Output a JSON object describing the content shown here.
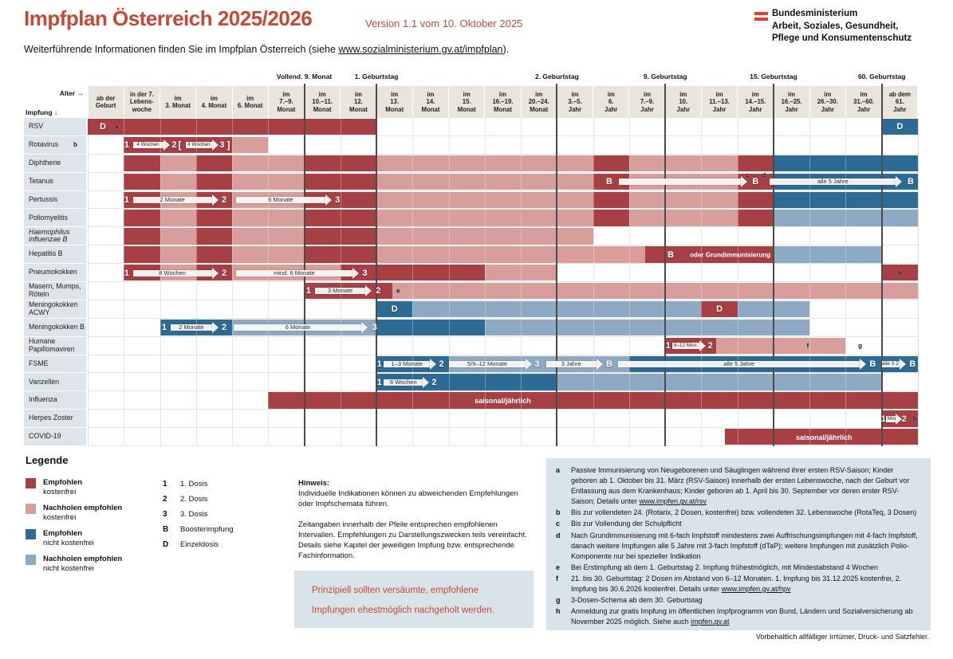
{
  "page": {
    "title": "Impfplan Österreich 2025/2026",
    "version": "Version 1.1 vom 10. Oktober 2025",
    "ministry_lines": [
      "Bundesministerium",
      "Arbeit, Soziales, Gesundheit,",
      "Pflege und Konsumentenschutz"
    ],
    "info_prefix": "Weiterführende Informationen finden Sie im Impfplan Österreich (siehe ",
    "info_link": "www.sozialministerium.gv.at/impfplan",
    "info_suffix": ").",
    "disclaimer": "Vorbehaltlich allfälliger Irrtümer, Druck- und Satzfehler."
  },
  "colors": {
    "dr": "#a64045",
    "pk": "#d79e9b",
    "db": "#2d6b94",
    "lb": "#8ea9c4",
    "accent": "#c54936",
    "flag_red": "#e93e2f",
    "header_bg": "#e9e5dc",
    "label_bg": "#dee5ea",
    "panel_bg": "#d9e3ea"
  },
  "chart_data": {
    "type": "table",
    "corner": {
      "age": "Alter →",
      "vaccine": "Impfung ↓"
    },
    "columns": [
      "ab der\nGeburt",
      "in der 7.\nLebens-\nwoche",
      "im\n3. Monat",
      "im\n4. Monat",
      "im\n6. Monat",
      "im\n7.–9.\nMonat",
      "im\n10.–11.\nMonat",
      "im\n12.\nMonat",
      "im\n13.\nMonat",
      "im\n14.\nMonat",
      "im\n15.\nMonat",
      "im\n16.–19.\nMonat",
      "im\n20.–24.\nMonat",
      "im\n3.–5.\nJahr",
      "im\n6.\nJahr",
      "im\n7.–9.\nJahr",
      "im\n10.\nJahr",
      "im\n11.–13.\nJahr",
      "im\n14.–15.\nJahr",
      "im\n16.–25.\nJahr",
      "im\n26.–30.\nJahr",
      "im\n31.–60.\nJahr",
      "ab dem\n61.\nJahr"
    ],
    "milestones": [
      {
        "label": "Vollend. 9. Monat",
        "u": 6
      },
      {
        "label": "1. Geburtstag",
        "u": 8
      },
      {
        "label": "2. Geburtstag",
        "u": 13
      },
      {
        "label": "9. Geburtstag",
        "u": 16
      },
      {
        "label": "15. Geburtstag",
        "u": 19
      },
      {
        "label": "60. Geburtstag",
        "u": 22
      }
    ],
    "rows": [
      {
        "label": "RSV",
        "spans": [
          [
            0,
            8,
            "dr"
          ],
          [
            22,
            23,
            "db"
          ]
        ],
        "arrows": [],
        "marks": [
          [
            "num",
            "D",
            0.42
          ],
          [
            "fn",
            "a",
            0.8
          ],
          [
            "num",
            "D",
            22.5
          ]
        ]
      },
      {
        "label": "Rotavirus",
        "sup": "b",
        "spans": [
          [
            1,
            4,
            "dr"
          ],
          [
            4,
            5,
            "pk"
          ]
        ],
        "arrows": [
          [
            "4 Wochen",
            1.25,
            2.2
          ],
          [
            "4 Wochen",
            2.72,
            3.55
          ]
        ],
        "marks": [
          [
            "num",
            "1",
            1.08
          ],
          [
            "num",
            "2",
            2.4
          ],
          [
            "br",
            "[",
            2.55
          ],
          [
            "num",
            "3",
            3.72
          ],
          [
            "br",
            "]",
            3.9
          ]
        ]
      },
      {
        "label": "Diphtherie",
        "spans": [
          [
            1,
            2,
            "dr"
          ],
          [
            2,
            3,
            "pk"
          ],
          [
            3,
            4,
            "dr"
          ],
          [
            4,
            6,
            "pk"
          ],
          [
            6,
            8,
            "dr"
          ],
          [
            8,
            14,
            "pk"
          ],
          [
            14,
            15,
            "dr"
          ],
          [
            15,
            18,
            "pk"
          ],
          [
            18,
            19,
            "dr"
          ],
          [
            19,
            23,
            "db"
          ]
        ],
        "arrows": [],
        "marks": []
      },
      {
        "label": "Tetanus",
        "spans": [
          [
            1,
            2,
            "dr"
          ],
          [
            2,
            3,
            "pk"
          ],
          [
            3,
            4,
            "dr"
          ],
          [
            4,
            6,
            "pk"
          ],
          [
            6,
            8,
            "dr"
          ],
          [
            8,
            14,
            "pk"
          ],
          [
            14,
            15,
            "dr"
          ],
          [
            15,
            18,
            "pk"
          ],
          [
            18,
            19,
            "dr"
          ],
          [
            19,
            23,
            "db"
          ]
        ],
        "arrows": [
          [
            "",
            14.72,
            18.2
          ],
          [
            "alle 5 Jahre",
            18.9,
            22.5
          ]
        ],
        "marks": [
          [
            "num",
            "B",
            14.45
          ],
          [
            "num",
            "B",
            18.5
          ],
          [
            "fn",
            "c",
            18.28,
            -8
          ],
          [
            "fn",
            "d",
            18.73,
            -8
          ],
          [
            "num",
            "B",
            22.8
          ]
        ]
      },
      {
        "label": "Pertussis",
        "spans": [
          [
            1,
            2,
            "dr"
          ],
          [
            2,
            3,
            "pk"
          ],
          [
            3,
            4,
            "dr"
          ],
          [
            4,
            6,
            "pk"
          ],
          [
            6,
            8,
            "dr"
          ],
          [
            8,
            14,
            "pk"
          ],
          [
            14,
            15,
            "dr"
          ],
          [
            15,
            18,
            "pk"
          ],
          [
            18,
            19,
            "dr"
          ],
          [
            19,
            23,
            "db"
          ]
        ],
        "arrows": [
          [
            "2 Monate",
            1.25,
            3.55
          ],
          [
            "6 Monate",
            4.1,
            6.7
          ]
        ],
        "marks": [
          [
            "num",
            "1",
            1.08
          ],
          [
            "num",
            "2",
            3.78
          ],
          [
            "num",
            "3",
            6.92
          ]
        ]
      },
      {
        "label": "Poliomyelitis",
        "spans": [
          [
            1,
            2,
            "dr"
          ],
          [
            2,
            3,
            "pk"
          ],
          [
            3,
            4,
            "dr"
          ],
          [
            4,
            6,
            "pk"
          ],
          [
            6,
            8,
            "dr"
          ],
          [
            8,
            14,
            "pk"
          ],
          [
            14,
            15,
            "dr"
          ],
          [
            15,
            18,
            "pk"
          ],
          [
            18,
            19,
            "dr"
          ],
          [
            19,
            23,
            "lb"
          ]
        ],
        "arrows": [],
        "marks": []
      },
      {
        "label": "Haemophilus\ninfluenzae B",
        "italic": true,
        "spans": [
          [
            1,
            2,
            "dr"
          ],
          [
            2,
            3,
            "pk"
          ],
          [
            3,
            4,
            "dr"
          ],
          [
            4,
            6,
            "pk"
          ],
          [
            6,
            8,
            "dr"
          ],
          [
            8,
            14,
            "pk"
          ]
        ],
        "arrows": [],
        "marks": []
      },
      {
        "label": "Hepatitis B",
        "spans": [
          [
            1,
            2,
            "dr"
          ],
          [
            2,
            3,
            "pk"
          ],
          [
            3,
            4,
            "dr"
          ],
          [
            4,
            6,
            "pk"
          ],
          [
            6,
            8,
            "dr"
          ],
          [
            8,
            15.45,
            "pk"
          ],
          [
            15.45,
            19,
            "dr"
          ],
          [
            19,
            22,
            "lb"
          ]
        ],
        "arrows": [],
        "marks": [
          [
            "num",
            "B",
            16.15
          ],
          [
            "wl",
            "oder Grundimmunisierung",
            17.8,
            0,
            8
          ]
        ]
      },
      {
        "label": "Pneumokokken",
        "spans": [
          [
            1,
            2,
            "dr"
          ],
          [
            2,
            3,
            "pk"
          ],
          [
            3,
            4,
            "dr"
          ],
          [
            4,
            7,
            "pk"
          ],
          [
            7,
            11,
            "dr"
          ],
          [
            11,
            13,
            "pk"
          ],
          [
            22,
            23,
            "dr"
          ]
        ],
        "arrows": [
          [
            "8 Wochen",
            1.25,
            3.55
          ],
          [
            "mind. 6 Monate",
            4.1,
            7.45
          ]
        ],
        "marks": [
          [
            "num",
            "1",
            1.08
          ],
          [
            "num",
            "2",
            3.78
          ],
          [
            "num",
            "3",
            7.68
          ],
          [
            "fn",
            "h",
            22.5
          ]
        ]
      },
      {
        "label": "Masern, Mumps,\nRöteln",
        "spans": [
          [
            6,
            8.45,
            "dr"
          ],
          [
            8.45,
            23,
            "pk"
          ]
        ],
        "arrows": [
          [
            "3 Monate",
            6.3,
            7.8
          ]
        ],
        "marks": [
          [
            "num",
            "1",
            6.12
          ],
          [
            "num",
            "2",
            8.05
          ],
          [
            "fn",
            "e",
            8.6
          ]
        ]
      },
      {
        "label": "Meningokokken\nACWY",
        "spans": [
          [
            8,
            9,
            "db"
          ],
          [
            9,
            17,
            "lb"
          ],
          [
            17,
            18,
            "dr"
          ],
          [
            18,
            20,
            "lb"
          ]
        ],
        "arrows": [],
        "marks": [
          [
            "num",
            "D",
            8.5
          ],
          [
            "num",
            "D",
            17.5
          ]
        ]
      },
      {
        "label": "Meningokokken B",
        "spans": [
          [
            2,
            4,
            "db"
          ],
          [
            4,
            8,
            "lb"
          ],
          [
            8,
            11,
            "db"
          ],
          [
            11,
            20,
            "lb"
          ]
        ],
        "arrows": [
          [
            "2 Monate",
            2.3,
            3.55
          ],
          [
            "6 Monate",
            4.05,
            7.7
          ]
        ],
        "marks": [
          [
            "num",
            "1",
            2.12
          ],
          [
            "num",
            "2",
            3.78
          ],
          [
            "num",
            "3",
            7.95
          ]
        ]
      },
      {
        "label": "Humane\nPapillomaviren",
        "spans": [
          [
            16,
            17.4,
            "dr"
          ],
          [
            17.4,
            21,
            "pk"
          ]
        ],
        "arrows": [
          [
            "6–12 Mon.",
            16.2,
            17.05
          ]
        ],
        "marks": [
          [
            "num",
            "1",
            16.08
          ],
          [
            "num",
            "2",
            17.25
          ],
          [
            "fn",
            "f",
            19.95
          ],
          [
            "fn",
            "g",
            21.4
          ]
        ]
      },
      {
        "label": "FSME",
        "spans": [
          [
            8,
            10,
            "db"
          ],
          [
            10,
            15,
            "lb"
          ],
          [
            15,
            23,
            "db"
          ]
        ],
        "arrows": [
          [
            "1–3 Monate",
            8.2,
            9.6
          ],
          [
            "5/9–12 Monate",
            10.0,
            12.25
          ],
          [
            "3 Jahre",
            12.7,
            14.2
          ],
          [
            "alle 5 Jahre",
            14.7,
            21.5
          ],
          [
            "alle 3 J.",
            22.0,
            22.6
          ]
        ],
        "marks": [
          [
            "num",
            "1",
            8.08
          ],
          [
            "num",
            "2",
            9.8
          ],
          [
            "num",
            "3",
            12.45
          ],
          [
            "num",
            "B",
            14.45
          ],
          [
            "num",
            "B",
            21.75
          ],
          [
            "num",
            "B",
            22.85
          ]
        ]
      },
      {
        "label": "Varizellen",
        "spans": [
          [
            8,
            13,
            "db"
          ],
          [
            13,
            22,
            "lb"
          ]
        ],
        "arrows": [
          [
            "6 Wochen",
            8.2,
            9.4
          ]
        ],
        "marks": [
          [
            "num",
            "1",
            8.08
          ],
          [
            "num",
            "2",
            9.6
          ]
        ]
      },
      {
        "label": "Influenza",
        "spans": [
          [
            5,
            23,
            "dr"
          ]
        ],
        "arrows": [],
        "marks": [
          [
            "wl",
            "saisonal/jährlich",
            11.5,
            0,
            9
          ]
        ]
      },
      {
        "label": "Herpes Zoster",
        "spans": [
          [
            22,
            23,
            "dr"
          ]
        ],
        "arrows": [
          [
            "2 Mon.",
            22.12,
            22.5
          ]
        ],
        "marks": [
          [
            "num",
            "1",
            22.05
          ],
          [
            "num",
            "2",
            22.62
          ],
          [
            "fn",
            "h",
            22.92
          ]
        ]
      },
      {
        "label": "COVID-19",
        "spans": [
          [
            17.65,
            23,
            "dr"
          ]
        ],
        "arrows": [],
        "marks": [
          [
            "wl",
            "saisonal/jährlich",
            20.4,
            0,
            9
          ]
        ]
      }
    ]
  },
  "legend": {
    "title": "Legende",
    "swatches": [
      {
        "color": "dr",
        "line1": "Empfohlen",
        "line2": "kostenfrei"
      },
      {
        "color": "pk",
        "line1": "Nachholen empfohlen",
        "line2": "kostenfrei"
      },
      {
        "color": "db",
        "line1": "Empfohlen",
        "line2": "nicht kostenfrei"
      },
      {
        "color": "lb",
        "line1": "Nachholen empfohlen",
        "line2": "nicht kostenfrei"
      }
    ],
    "symbols": [
      {
        "sym": "1",
        "text": "1. Dosis"
      },
      {
        "sym": "2",
        "text": "2. Dosis"
      },
      {
        "sym": "3",
        "text": "3. Dosis"
      },
      {
        "sym": "B",
        "text": "Boosterimpfung"
      },
      {
        "sym": "D",
        "text": "Einzeldosis"
      }
    ]
  },
  "hinweis": {
    "title": "Hinweis:",
    "p1": "Individuelle Indikationen können zu abweichenden Empfehlungen oder Impfschemata führen.",
    "p2": "Zeitangaben innerhalb der Pfeile entsprechen empfohlenen Intervallen. Empfehlungen zu Darstellungszwecken teils vereinfacht. Details siehe Kapitel der jeweiligen Impfung bzw. entsprechende Fachinformation."
  },
  "notice": "Prinzipiell sollten versäumte, empfohlene Impfungen ehestmöglich nachgeholt werden.",
  "footnotes": [
    {
      "k": "a",
      "segs": [
        {
          "t": "Passive Immunisierung von Neugeborenen und Säuglingen während ihrer ersten RSV-Saison; Kinder geboren ab 1. Oktober bis 31. März (RSV-Saison) innerhalb der ersten Lebenswoche, nach der Geburt vor Entlassung aus dem Krankenhaus; Kinder geboren ab 1. April bis 30. September vor deren erster RSV-Saison; Details unter "
        },
        {
          "t": "www.impfen.gv.at/rsv",
          "link": true
        }
      ]
    },
    {
      "k": "b",
      "segs": [
        {
          "t": "Bis zur vollendeten 24. (Rotarix, 2 Dosen, kostenfrei) bzw. vollendeten 32. Lebenswoche (RotaTeq, 3 Dosen)"
        }
      ]
    },
    {
      "k": "c",
      "segs": [
        {
          "t": "Bis zur Vollendung der Schulpflicht"
        }
      ]
    },
    {
      "k": "d",
      "segs": [
        {
          "t": "Nach Grundimmunisierung mit 6-fach Impfstoff mindestens zwei Auffrischungsimpfungen mit 4-fach Impfstoff, danach weitere Impfungen alle 5 Jahre mit 3-fach Impfstoff (dTaP); weitere Impfungen mit zusätzlich Polio-Komponente nur bei spezieller Indikation"
        }
      ]
    },
    {
      "k": "e",
      "segs": [
        {
          "t": "Bei Erstimpfung ab dem 1. Geburtstag 2. Impfung frühestmöglich, mit Mindestabstand 4 Wochen"
        }
      ]
    },
    {
      "k": "f",
      "segs": [
        {
          "t": "21. bis 30. Geburtstag: 2 Dosen im Abstand von 6–12 Monaten. 1. Impfung bis 31.12.2025 kostenfrei, 2. Impfung bis 30.6.2026 kostenfrei. Details unter "
        },
        {
          "t": "www.impfen.gv.at/hpv",
          "link": true
        }
      ]
    },
    {
      "k": "g",
      "segs": [
        {
          "t": "3-Dosen-Schema ab dem 30. Geburtstag"
        }
      ]
    },
    {
      "k": "h",
      "segs": [
        {
          "t": "Anmeldung zur gratis Impfung im öffentlichen Impfprogramm von Bund, Ländern und Sozialversicherung ab November 2025 möglich. Siehe auch "
        },
        {
          "t": "impfen.gv.at",
          "link": true
        }
      ]
    }
  ]
}
